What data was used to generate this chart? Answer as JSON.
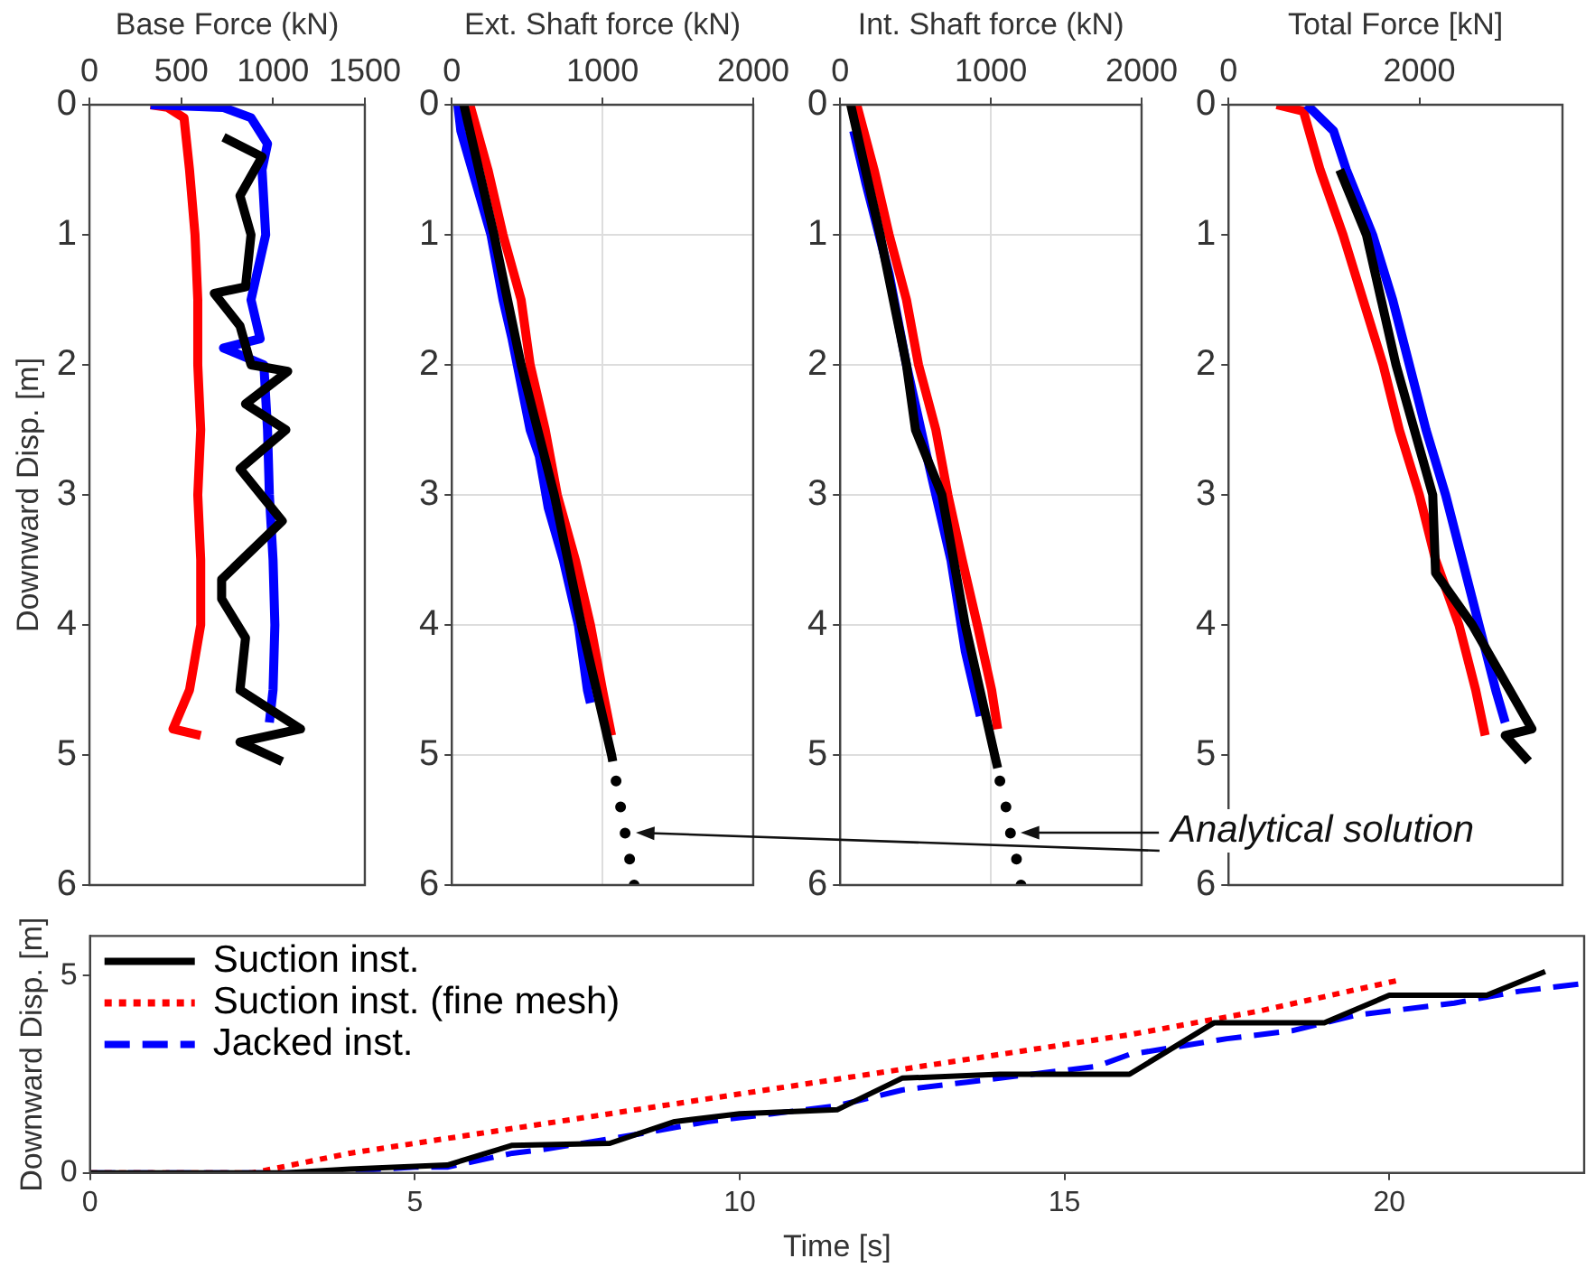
{
  "chart_data": [
    {
      "type": "line",
      "xlabel": "Base Force (kN)",
      "ylabel": "Downward Disp. [m]",
      "xlim": [
        0,
        1500
      ],
      "xticks": [
        0,
        500,
        1000,
        1500
      ],
      "ylim": [
        6,
        0
      ],
      "yticks": [
        0,
        1,
        2,
        3,
        4,
        5,
        6
      ],
      "grid": false,
      "series": [
        {
          "color": "#000000",
          "x": [
            730,
            940,
            820,
            880,
            850,
            680,
            820,
            880,
            1080,
            850,
            1070,
            820,
            1050,
            720,
            720,
            850,
            820,
            1150,
            820,
            1050
          ],
          "values": [
            0.25,
            0.4,
            0.7,
            1,
            1.4,
            1.45,
            1.7,
            2,
            2.05,
            2.3,
            2.5,
            2.8,
            3.2,
            3.65,
            3.8,
            4.1,
            4.5,
            4.8,
            4.9,
            5.05
          ]
        },
        {
          "color": "#0000ff",
          "x": [
            333,
            727,
            880,
            970,
            940,
            960,
            880,
            930,
            730,
            950,
            970,
            980,
            1000,
            1010,
            1000,
            980
          ],
          "values": [
            0,
            0.02,
            0.1,
            0.3,
            0.5,
            1,
            1.5,
            1.8,
            1.87,
            2,
            2.5,
            3,
            3.5,
            4,
            4.5,
            4.75
          ]
        },
        {
          "color": "#ff0000",
          "x": [
            333,
            424,
            515,
            545,
            575,
            590,
            590,
            606,
            590,
            606,
            606,
            545,
            455,
            606
          ],
          "values": [
            0,
            0.02,
            0.1,
            0.5,
            1,
            1.5,
            2,
            2.5,
            3,
            3.5,
            4,
            4.5,
            4.8,
            4.85
          ]
        }
      ]
    },
    {
      "type": "line",
      "xlabel": "Ext. Shaft force (kN)",
      "xlim": [
        0,
        2000
      ],
      "xticks": [
        0,
        1000,
        2000
      ],
      "ylim": [
        6,
        0
      ],
      "yticks": [
        0,
        1,
        2,
        3,
        4,
        5,
        6
      ],
      "grid": true,
      "series": [
        {
          "color": "#000000",
          "x": [
            80,
            280,
            460,
            680,
            860,
            1060,
            1068
          ],
          "values": [
            0,
            1,
            2,
            3,
            4,
            5,
            5.05
          ]
        },
        {
          "color": "#0000ff",
          "x": [
            40,
            60,
            160,
            260,
            340,
            400,
            520,
            580,
            640,
            740,
            840,
            900,
            920
          ],
          "values": [
            0,
            0.2,
            0.6,
            1,
            1.5,
            1.8,
            2.5,
            2.7,
            3.1,
            3.5,
            4,
            4.5,
            4.6
          ]
        },
        {
          "color": "#ff0000",
          "x": [
            120,
            240,
            340,
            460,
            520,
            620,
            700,
            820,
            920,
            1000,
            1060
          ],
          "values": [
            0,
            0.5,
            1,
            1.5,
            2,
            2.5,
            3,
            3.5,
            4,
            4.5,
            4.85
          ]
        },
        {
          "type": "scatter",
          "marker": "circle",
          "color": "#000000",
          "x": [
            1090,
            1120,
            1150,
            1180,
            1210
          ],
          "values": [
            5.2,
            5.4,
            5.6,
            5.8,
            6
          ]
        }
      ]
    },
    {
      "type": "line",
      "xlabel": "Int. Shaft force (kN)",
      "xlim": [
        0,
        2000
      ],
      "xticks": [
        0,
        1000,
        2000
      ],
      "ylim": [
        6,
        0
      ],
      "yticks": [
        0,
        1,
        2,
        3,
        4,
        5,
        6
      ],
      "grid": true,
      "annotations": [
        "Analytical solution"
      ],
      "series": [
        {
          "color": "#000000",
          "x": [
            70,
            265,
            440,
            500,
            675,
            830,
            1025,
            1045
          ],
          "values": [
            0,
            1,
            2,
            2.5,
            3,
            4,
            5,
            5.1
          ]
        },
        {
          "color": "#0000ff",
          "x": [
            90,
            170,
            325,
            440,
            575,
            735,
            830,
            930
          ],
          "values": [
            0.2,
            0.6,
            1.3,
            2,
            2.7,
            3.5,
            4.2,
            4.7
          ]
        },
        {
          "color": "#ff0000",
          "x": [
            110,
            225,
            325,
            440,
            520,
            635,
            715,
            810,
            910,
            1005,
            1045
          ],
          "values": [
            0,
            0.5,
            1,
            1.5,
            2,
            2.5,
            3,
            3.5,
            4,
            4.5,
            4.8
          ]
        },
        {
          "type": "scatter",
          "marker": "circle",
          "color": "#000000",
          "x": [
            1060,
            1100,
            1130,
            1170,
            1200
          ],
          "values": [
            5.2,
            5.4,
            5.6,
            5.8,
            6
          ]
        }
      ]
    },
    {
      "type": "line",
      "xlabel": "Total Force [kN]",
      "xlim": [
        0,
        3500
      ],
      "xticks": [
        0,
        2000
      ],
      "ylim": [
        6,
        0
      ],
      "yticks": [
        0,
        1,
        2,
        3,
        4,
        5,
        6
      ],
      "grid": false,
      "series": [
        {
          "color": "#000000",
          "x": [
            1165,
            1445,
            1755,
            2140,
            2170,
            2555,
            3180,
            2900,
            3145
          ],
          "values": [
            0.5,
            1,
            2,
            3,
            3.6,
            4,
            4.8,
            4.85,
            5.05
          ]
        },
        {
          "color": "#0000ff",
          "x": [
            820,
            1100,
            1235,
            1510,
            1720,
            1895,
            2070,
            2275,
            2450,
            2625,
            2800,
            2900
          ],
          "values": [
            0,
            0.2,
            0.5,
            1,
            1.5,
            2,
            2.5,
            3,
            3.5,
            4,
            4.5,
            4.75
          ]
        },
        {
          "color": "#ff0000",
          "x": [
            505,
            785,
            960,
            1200,
            1410,
            1620,
            1790,
            2000,
            2170,
            2415,
            2590,
            2690
          ],
          "values": [
            0,
            0.05,
            0.5,
            1,
            1.5,
            2,
            2.5,
            3,
            3.5,
            4,
            4.5,
            4.85
          ]
        }
      ]
    },
    {
      "type": "line",
      "xlabel": "Time [s]",
      "ylabel": "Downward Disp. [m]",
      "xlim": [
        0,
        23
      ],
      "xticks": [
        0,
        5,
        10,
        15,
        20
      ],
      "ylim": [
        0,
        6
      ],
      "yticks": [
        0,
        5
      ],
      "grid": false,
      "legend": "top left",
      "series": [
        {
          "name": "Suction inst.",
          "color": "#000000",
          "line_style": "solid",
          "x": [
            0,
            3,
            4,
            5.5,
            6.5,
            8,
            9,
            10,
            11.5,
            12.5,
            14,
            16,
            16.5,
            17.3,
            19,
            20,
            21.5,
            22.4
          ],
          "values": [
            0,
            0,
            0.1,
            0.2,
            0.7,
            0.75,
            1.3,
            1.5,
            1.6,
            2.4,
            2.5,
            2.5,
            3,
            3.8,
            3.8,
            4.5,
            4.5,
            5.1
          ]
        },
        {
          "name": "Suction inst. (fine mesh)",
          "color": "#ff0000",
          "line_style": "dotted",
          "x": [
            0,
            2.5,
            4,
            6,
            8,
            10,
            12,
            14,
            16,
            18,
            20.2
          ],
          "values": [
            0,
            0,
            0.5,
            1,
            1.5,
            2,
            2.5,
            3,
            3.5,
            4.1,
            4.9
          ]
        },
        {
          "name": "Jacked inst.",
          "color": "#0000ff",
          "line_style": "dashed",
          "x": [
            0,
            3.5,
            4,
            5,
            5.5,
            6.5,
            7,
            8.5,
            9.5,
            10.5,
            11.5,
            12.5,
            13.5,
            14.5,
            15.5,
            16,
            17.5,
            18.5,
            19.5,
            21,
            22,
            23
          ],
          "values": [
            0,
            0,
            0.05,
            0.15,
            0.15,
            0.5,
            0.6,
            1,
            1.3,
            1.5,
            1.7,
            2.1,
            2.3,
            2.5,
            2.7,
            3,
            3.4,
            3.6,
            4,
            4.3,
            4.6,
            4.8
          ]
        }
      ]
    }
  ]
}
